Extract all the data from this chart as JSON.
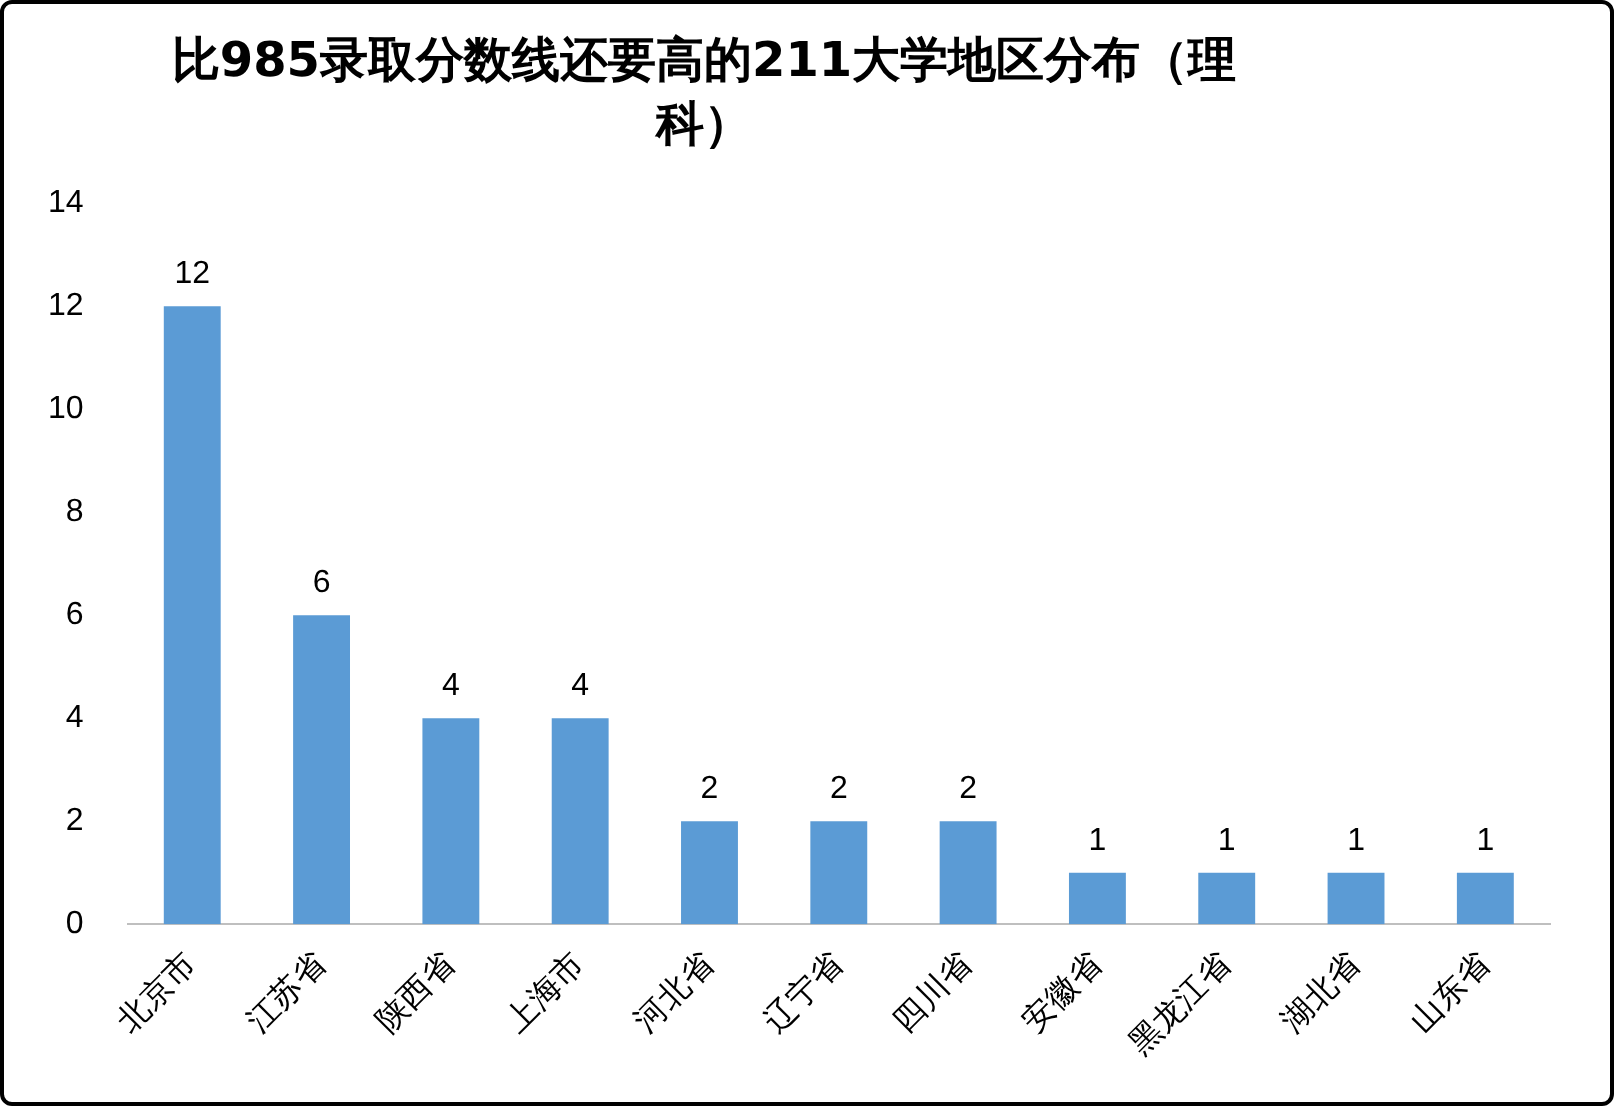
{
  "chart_data": {
    "type": "bar",
    "title": "比985录取分数线还要高的211大学地区分布（理科）",
    "categories": [
      "北京市",
      "江苏省",
      "陕西省",
      "上海市",
      "河北省",
      "辽宁省",
      "四川省",
      "安徽省",
      "黑龙江省",
      "湖北省",
      "山东省"
    ],
    "values": [
      12,
      6,
      4,
      4,
      2,
      2,
      2,
      1,
      1,
      1,
      1
    ],
    "color": "#5b9bd5",
    "ylim": [
      0,
      14
    ],
    "yticks": [
      0,
      2,
      4,
      6,
      8,
      10,
      12,
      14
    ],
    "grid": false,
    "data_labels": true
  }
}
